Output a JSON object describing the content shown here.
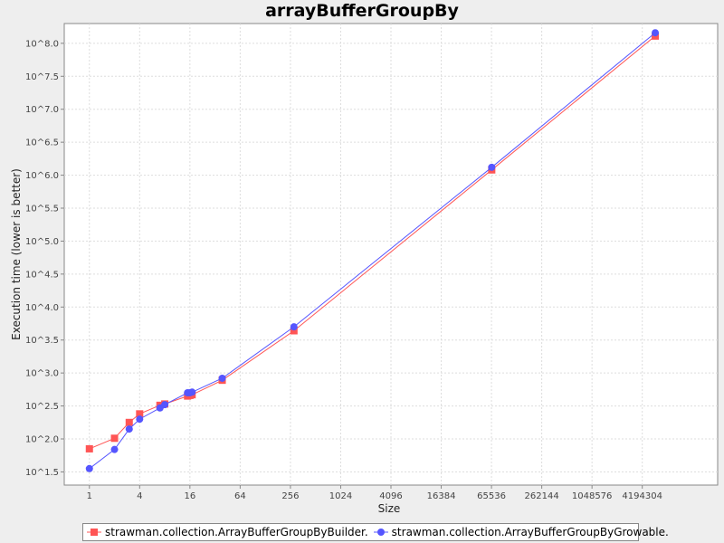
{
  "chart_data": {
    "type": "line",
    "title": "arrayBufferGroupBy",
    "xlabel": "Size",
    "ylabel": "Execution time (lower is better)",
    "x_scale": "log2",
    "y_scale": "log10",
    "xlim": [
      0.5,
      33554432
    ],
    "ylim": [
      1.3,
      8.3
    ],
    "x_ticks": [
      1,
      4,
      16,
      64,
      256,
      1024,
      4096,
      16384,
      65536,
      262144,
      1048576,
      4194304
    ],
    "x_tick_labels": [
      "1",
      "4",
      "16",
      "64",
      "256",
      "1024",
      "4096",
      "16384",
      "65536",
      "262144",
      "1048576",
      "4194304"
    ],
    "y_ticks": [
      1.5,
      2.0,
      2.5,
      3.0,
      3.5,
      4.0,
      4.5,
      5.0,
      5.5,
      6.0,
      6.5,
      7.0,
      7.5,
      8.0
    ],
    "y_tick_labels": [
      "10^1.5",
      "10^2.0",
      "10^2.5",
      "10^3.0",
      "10^3.5",
      "10^4.0",
      "10^4.5",
      "10^5.0",
      "10^5.5",
      "10^6.0",
      "10^6.5",
      "10^7.0",
      "10^7.5",
      "10^8.0"
    ],
    "grid": true,
    "legend_position": "bottom",
    "series": [
      {
        "name": "strawman.collection.ArrayBufferGroupByBuilder.",
        "color": "#ff5555",
        "marker": "square",
        "points": [
          {
            "x": 1,
            "y": 1.85
          },
          {
            "x": 2,
            "y": 2.01
          },
          {
            "x": 3,
            "y": 2.25
          },
          {
            "x": 4,
            "y": 2.38
          },
          {
            "x": 7,
            "y": 2.51
          },
          {
            "x": 8,
            "y": 2.53
          },
          {
            "x": 15,
            "y": 2.65
          },
          {
            "x": 16,
            "y": 2.66
          },
          {
            "x": 17,
            "y": 2.67
          },
          {
            "x": 39,
            "y": 2.89
          },
          {
            "x": 282,
            "y": 3.64
          },
          {
            "x": 66000,
            "y": 6.08
          },
          {
            "x": 6000000,
            "y": 8.11
          }
        ]
      },
      {
        "name": "strawman.collection.ArrayBufferGroupByGrowable.",
        "color": "#5555ff",
        "marker": "circle",
        "points": [
          {
            "x": 1,
            "y": 1.55
          },
          {
            "x": 2,
            "y": 1.84
          },
          {
            "x": 3,
            "y": 2.15
          },
          {
            "x": 4,
            "y": 2.3
          },
          {
            "x": 7,
            "y": 2.47
          },
          {
            "x": 8,
            "y": 2.52
          },
          {
            "x": 15,
            "y": 2.7
          },
          {
            "x": 16,
            "y": 2.7
          },
          {
            "x": 17,
            "y": 2.71
          },
          {
            "x": 39,
            "y": 2.92
          },
          {
            "x": 282,
            "y": 3.7
          },
          {
            "x": 66000,
            "y": 6.12
          },
          {
            "x": 6000000,
            "y": 8.16
          }
        ]
      }
    ]
  },
  "colors": {
    "background": "#eeeeee",
    "plot_background": "#ffffff",
    "gridline": "#dddddd"
  }
}
